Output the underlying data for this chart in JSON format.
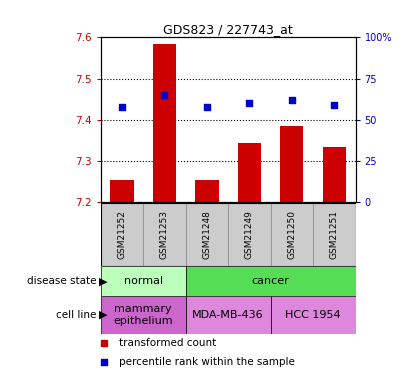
{
  "title": "GDS823 / 227743_at",
  "samples": [
    "GSM21252",
    "GSM21253",
    "GSM21248",
    "GSM21249",
    "GSM21250",
    "GSM21251"
  ],
  "bar_values": [
    7.255,
    7.585,
    7.255,
    7.345,
    7.385,
    7.335
  ],
  "bar_bottom": 7.2,
  "percentile_values": [
    58,
    65,
    58,
    60,
    62,
    59
  ],
  "ylim": [
    7.2,
    7.6
  ],
  "bar_color": "#cc0000",
  "dot_color": "#0000cc",
  "disease_state_groups": [
    {
      "label": "normal",
      "start": 0,
      "end": 2,
      "color": "#bbffbb"
    },
    {
      "label": "cancer",
      "start": 2,
      "end": 6,
      "color": "#55dd55"
    }
  ],
  "cell_line_groups": [
    {
      "label": "mammary\nepithelium",
      "start": 0,
      "end": 2,
      "color": "#cc66cc"
    },
    {
      "label": "MDA-MB-436",
      "start": 2,
      "end": 4,
      "color": "#dd88dd"
    },
    {
      "label": "HCC 1954",
      "start": 4,
      "end": 6,
      "color": "#dd88dd"
    }
  ],
  "legend_items": [
    {
      "color": "#cc0000",
      "label": "transformed count"
    },
    {
      "color": "#0000cc",
      "label": "percentile rank within the sample"
    }
  ],
  "bar_width": 0.55,
  "sample_box_color": "#cccccc",
  "sample_box_edge": "#888888"
}
